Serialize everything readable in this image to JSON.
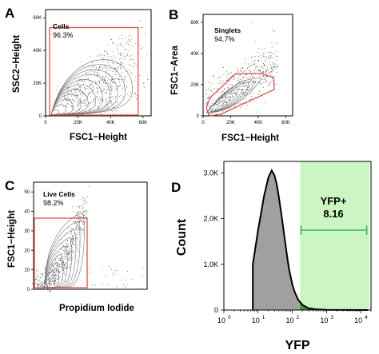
{
  "chart_data": [
    {
      "panel": "A",
      "type": "scatter",
      "xlabel": "FSC1−Height",
      "ylabel": "SSC2−Height",
      "xlim": [
        0,
        65000
      ],
      "ylim": [
        0,
        65000
      ],
      "xticks": [
        "0",
        "20K",
        "40K",
        "60K"
      ],
      "yticks": [
        "0",
        "20K",
        "40K",
        "60K"
      ],
      "gate": {
        "name": "Cells",
        "percent": "96.3%",
        "shape": "rectangle",
        "x_range": [
          2500,
          57000
        ],
        "y_range": [
          0,
          54000
        ],
        "color": "#d9534f"
      }
    },
    {
      "panel": "B",
      "type": "scatter",
      "xlabel": "FSC1−Height",
      "ylabel": "FSC1−Area",
      "xlim": [
        0,
        65000
      ],
      "ylim": [
        0,
        65000
      ],
      "xticks": [
        "0",
        "20K",
        "40K",
        "60K"
      ],
      "yticks": [
        "0",
        "20K",
        "40K",
        "60K"
      ],
      "gate": {
        "name": "Singlets",
        "percent": "94.7%",
        "shape": "polygon",
        "color": "#d9534f"
      }
    },
    {
      "panel": "C",
      "type": "scatter",
      "xlabel": "Propidium Iodide",
      "ylabel": "FSC1−Height",
      "ylim": [
        0,
        55000
      ],
      "yticks": [
        "0",
        "10",
        "20",
        "30",
        "40",
        "50"
      ],
      "gate": {
        "name": "Live Cells",
        "percent": "98.2%",
        "shape": "rectangle",
        "color": "#d9534f"
      }
    },
    {
      "panel": "D",
      "type": "area",
      "xlabel": "YFP",
      "ylabel": "Count",
      "x_scale": "log",
      "xlim": [
        1,
        20000
      ],
      "ylim": [
        0,
        3250
      ],
      "xticks": [
        "10^0",
        "10^1",
        "10^2",
        "10^3",
        "10^4"
      ],
      "yticks": [
        "0",
        "1.0K",
        "2.0K",
        "3.0K"
      ],
      "x": [
        7,
        10,
        15,
        20,
        25,
        30,
        35,
        40,
        50,
        60,
        70,
        80,
        100,
        120,
        150,
        200,
        300,
        500,
        1000
      ],
      "values": [
        1000,
        1750,
        2500,
        2900,
        3050,
        2950,
        2750,
        2500,
        2000,
        1550,
        1200,
        900,
        560,
        380,
        220,
        110,
        40,
        15,
        5
      ],
      "gate": {
        "name": "YFP+",
        "percent": "8.16",
        "x_range": [
          170,
          15000
        ],
        "fill": "#ccf5c4",
        "line": "#3bb54a"
      },
      "histogram_fill": "#a0a0a0",
      "gate_overlap_fill": "#4a8a4a"
    }
  ],
  "panels": {
    "a": {
      "letter": "A"
    },
    "b": {
      "letter": "B"
    },
    "c": {
      "letter": "C"
    },
    "d": {
      "letter": "D"
    }
  },
  "panel_d_tick_parts": {
    "base": "10",
    "exponents": [
      "0",
      "1",
      "2",
      "3",
      "4"
    ]
  }
}
